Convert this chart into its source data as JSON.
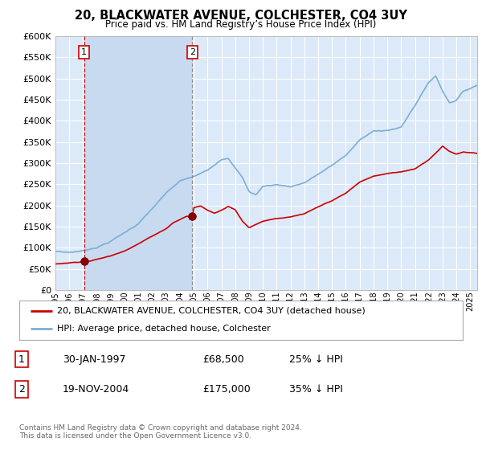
{
  "title": "20, BLACKWATER AVENUE, COLCHESTER, CO4 3UY",
  "subtitle": "Price paid vs. HM Land Registry’s House Price Index (HPI)",
  "xlim": [
    1995.0,
    2025.5
  ],
  "ylim": [
    0,
    600000
  ],
  "yticks": [
    0,
    50000,
    100000,
    150000,
    200000,
    250000,
    300000,
    350000,
    400000,
    450000,
    500000,
    550000,
    600000
  ],
  "background_color": "#ffffff",
  "plot_bg_color": "#dce9f8",
  "plot_bg_shaded": "#c8daf0",
  "grid_color": "#ffffff",
  "sale1_x": 1997.08,
  "sale1_y": 68500,
  "sale2_x": 2004.89,
  "sale2_y": 175000,
  "sale1_label": "30-JAN-1997",
  "sale1_price": "£68,500",
  "sale1_hpi": "25% ↓ HPI",
  "sale2_label": "19-NOV-2004",
  "sale2_price": "£175,000",
  "sale2_hpi": "35% ↓ HPI",
  "legend_line1": "20, BLACKWATER AVENUE, COLCHESTER, CO4 3UY (detached house)",
  "legend_line2": "HPI: Average price, detached house, Colchester",
  "footer": "Contains HM Land Registry data © Crown copyright and database right 2024.\nThis data is licensed under the Open Government Licence v3.0.",
  "red_color": "#cc0000",
  "blue_color": "#7bafd4",
  "sale_dot_color": "#8b0000"
}
